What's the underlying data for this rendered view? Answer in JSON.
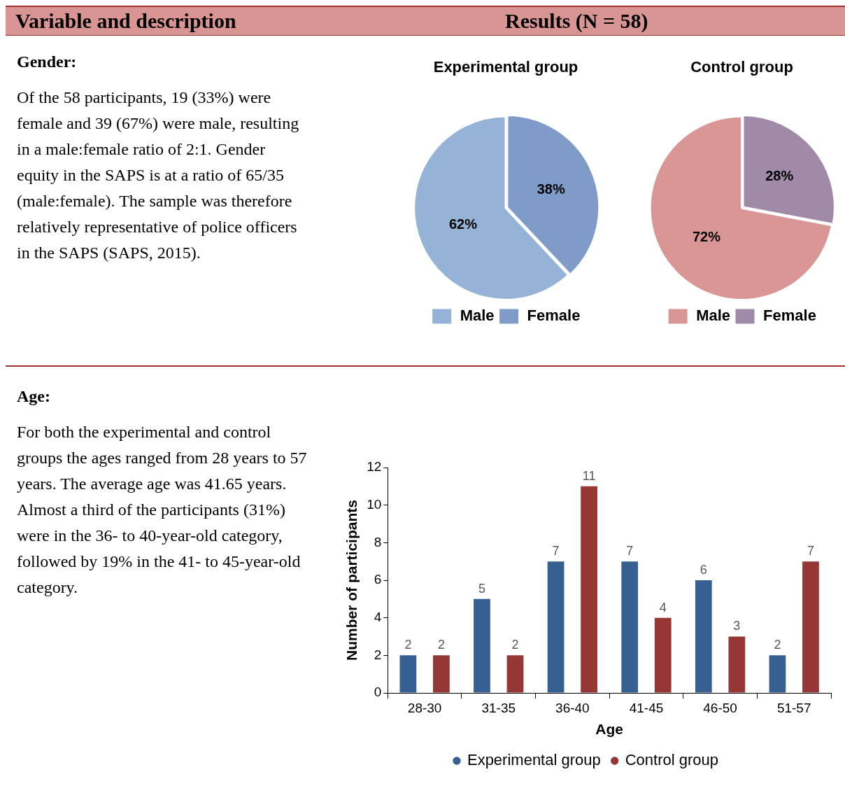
{
  "chart_data": [
    {
      "type": "other",
      "title": "Variable and description",
      "subtitle": "Results (N = 58)"
    },
    {
      "type": "other",
      "title": "Gender:",
      "annotations": [
        "Of the 58 participants, 19 (33%) were female and 39 (67%) were male, resulting in a male:female ratio of 2:1. Gender equity in the SAPS is at a ratio of 65/35 (male:female). The sample was therefore relatively representative of police officers in the SAPS (SAPS, 2015)."
      ]
    },
    {
      "type": "pie",
      "title": "Experimental group",
      "categories": [
        "Male",
        "Female"
      ],
      "values": [
        62,
        38
      ],
      "colors": [
        "#95b3d7",
        "#7f9cc9"
      ],
      "value_labels": [
        "62%",
        "38%"
      ],
      "legend": "bottom"
    },
    {
      "type": "pie",
      "title": "Control group",
      "categories": [
        "Male",
        "Female"
      ],
      "values": [
        72,
        28
      ],
      "colors": [
        "#d99694",
        "#a08aa8"
      ],
      "value_labels": [
        "72%",
        "28%"
      ],
      "legend": "bottom"
    },
    {
      "type": "other",
      "title": "Age:",
      "annotations": [
        "For both the experimental and control groups the ages ranged from 28 years to 57 years. The average age was 41.65 years. Almost a third of the participants (31%) were in the 36- to 40-year-old category, followed by 19% in the 41- to 45-year-old category."
      ]
    },
    {
      "type": "bar",
      "categories": [
        "28-30",
        "31-35",
        "36-40",
        "41-45",
        "46-50",
        "51-57"
      ],
      "xlabel": "Age",
      "ylabel": "Number of participants",
      "ylim": [
        0,
        12
      ],
      "yticks": [
        0,
        2,
        4,
        6,
        8,
        10,
        12
      ],
      "grid": false,
      "legend": "bottom",
      "data_labels": true,
      "series": [
        {
          "name": "Experimental group",
          "color": "#376092",
          "values": [
            2,
            5,
            7,
            7,
            6,
            2
          ]
        },
        {
          "name": "Control group",
          "color": "#953735",
          "values": [
            2,
            2,
            11,
            4,
            3,
            7
          ]
        }
      ]
    }
  ]
}
